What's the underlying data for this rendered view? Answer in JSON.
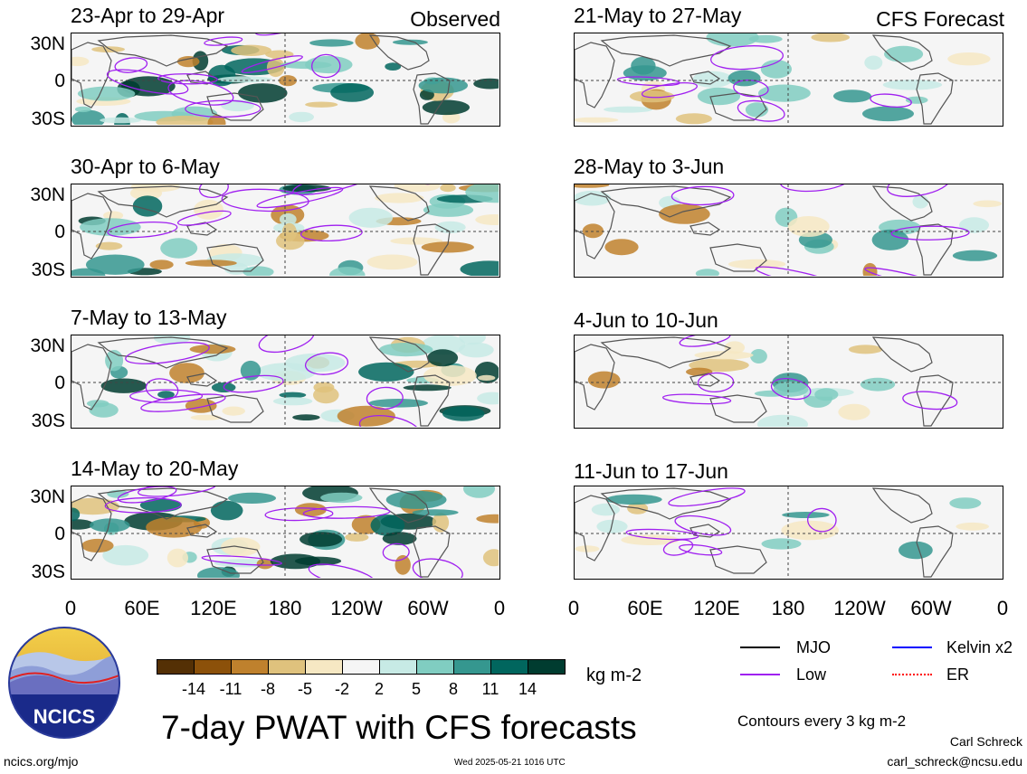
{
  "panels": [
    {
      "period": "23-Apr to 29-Apr",
      "tag": "Observed"
    },
    {
      "period": "21-May to 27-May",
      "tag": "CFS Forecast"
    },
    {
      "period": "30-Apr to 6-May",
      "tag": ""
    },
    {
      "period": "28-May to 3-Jun",
      "tag": ""
    },
    {
      "period": "7-May to 13-May",
      "tag": ""
    },
    {
      "period": "4-Jun to 10-Jun",
      "tag": ""
    },
    {
      "period": "14-May to 20-May",
      "tag": ""
    },
    {
      "period": "11-Jun to 17-Jun",
      "tag": ""
    }
  ],
  "lat_labels": [
    "30N",
    "0",
    "30S"
  ],
  "lon_labels": [
    "0",
    "60E",
    "120E",
    "180",
    "120W",
    "60W",
    "0"
  ],
  "colorbar": {
    "colors": [
      "#543005",
      "#8c510a",
      "#bf812d",
      "#dfc27d",
      "#f6e8c3",
      "#f5f5f5",
      "#c7eae5",
      "#80cdc1",
      "#35978f",
      "#01665e",
      "#003c30"
    ],
    "ticks": [
      "-14",
      "-11",
      "-8",
      "-5",
      "-2",
      "2",
      "5",
      "8",
      "11",
      "14"
    ],
    "unit": "kg m-2"
  },
  "legend": {
    "mjo": {
      "label": "MJO",
      "color": "#000000"
    },
    "kelvin": {
      "label": "Kelvin x2",
      "color": "#0000ff"
    },
    "low": {
      "label": "Low",
      "color": "#a020f0"
    },
    "er": {
      "label": "ER",
      "color": "#ff0000"
    }
  },
  "contours_note": "Contours every 3 kg m-2",
  "main_title": "7-day PWAT with CFS forecasts",
  "logo_text": "NCICS",
  "footer": {
    "url": "ncics.org/mjo",
    "timestamp": "Wed 2025-05-21 1016 UTC",
    "author": "Carl Schreck",
    "email": "carl_schreck@ncsu.edu"
  }
}
